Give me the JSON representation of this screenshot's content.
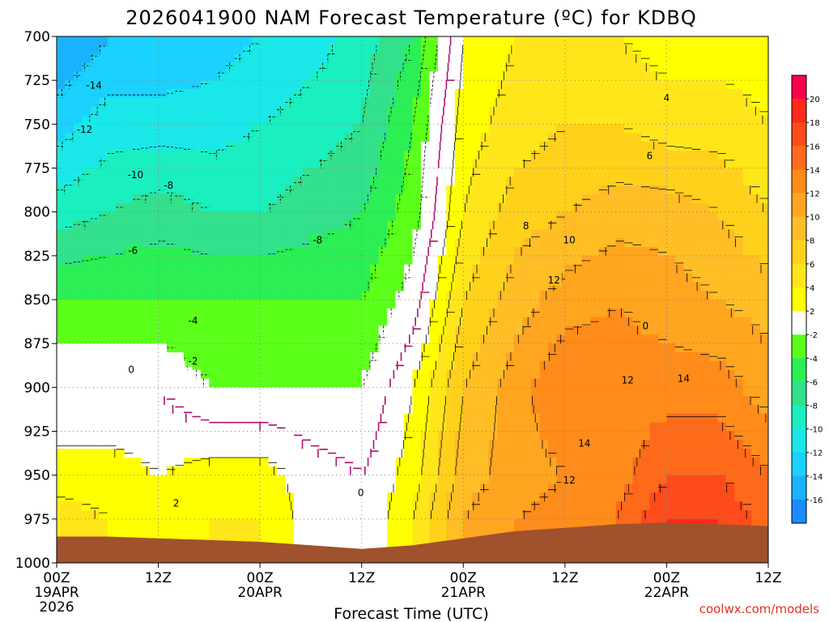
{
  "title": "2026041900 NAM Forecast Temperature (ºC) for KDBQ",
  "credit": "coolwx.com/models",
  "chart_data": {
    "type": "heatmap",
    "title": "2026041900 NAM Forecast Temperature (ºC) for KDBQ",
    "xlabel": "Forecast Time (UTC)",
    "ylabel": "",
    "xlim": [
      0,
      84
    ],
    "ylim": [
      1000,
      700
    ],
    "y_axis": {
      "ticks": [
        700,
        725,
        750,
        775,
        800,
        825,
        850,
        875,
        900,
        925,
        950,
        975,
        1000
      ],
      "labels": [
        "700",
        "725",
        "750",
        "775",
        "800",
        "825",
        "850",
        "875",
        "900",
        "925",
        "950",
        "975",
        "1000"
      ]
    },
    "x_axis": {
      "ticks": [
        0,
        12,
        24,
        36,
        48,
        60,
        72,
        84
      ],
      "labels": [
        [
          "00Z",
          "19APR",
          "2026"
        ],
        [
          "12Z"
        ],
        [
          "00Z",
          "20APR"
        ],
        [
          "12Z"
        ],
        [
          "00Z",
          "21APR"
        ],
        [
          "12Z"
        ],
        [
          "00Z",
          "22APR"
        ],
        [
          "12Z"
        ]
      ]
    },
    "grid": true,
    "colorbar": {
      "levels": [
        20,
        18,
        16,
        14,
        12,
        10,
        8,
        6,
        4,
        2,
        -2,
        -4,
        -6,
        -8,
        -10,
        -12,
        -14,
        -16
      ],
      "colors": [
        "#ff004a",
        "#ff2a1a",
        "#ff4a1a",
        "#ff6a1a",
        "#ff8c1a",
        "#ffa51f",
        "#ffbd26",
        "#ffd11a",
        "#ffe61a",
        "#ffff00",
        "#ffffff",
        "#5cff1a",
        "#2bef55",
        "#33e08c",
        "#1aefbf",
        "#1ae8e8",
        "#1ad1ff",
        "#1ab2ff",
        "#1a8cff"
      ],
      "labels": [
        "20",
        "18",
        "16",
        "14",
        "12",
        "10",
        "8",
        "6",
        "4",
        "2",
        "-2",
        "-4",
        "-6",
        "-8",
        "-10",
        "-12",
        "-14",
        "-16"
      ]
    },
    "contour_labels": [
      {
        "text": "-14",
        "x": 4.4,
        "y": 728
      },
      {
        "text": "-12",
        "x": 3.3,
        "y": 753
      },
      {
        "text": "-10",
        "x": 9.3,
        "y": 779
      },
      {
        "text": "-8",
        "x": 13.2,
        "y": 785
      },
      {
        "text": "-8",
        "x": 30.8,
        "y": 816
      },
      {
        "text": "-6",
        "x": 9.0,
        "y": 822
      },
      {
        "text": "-4",
        "x": 16.1,
        "y": 862
      },
      {
        "text": "-2",
        "x": 16.1,
        "y": 885
      },
      {
        "text": "0",
        "x": 8.8,
        "y": 890
      },
      {
        "text": "2",
        "x": 14.1,
        "y": 966
      },
      {
        "text": "0",
        "x": 35.9,
        "y": 960
      },
      {
        "text": "8",
        "x": 55.4,
        "y": 808
      },
      {
        "text": "10",
        "x": 60.5,
        "y": 816
      },
      {
        "text": "12",
        "x": 58.7,
        "y": 839
      },
      {
        "text": "0",
        "x": 69.5,
        "y": 865
      },
      {
        "text": "4",
        "x": 72.0,
        "y": 735
      },
      {
        "text": "6",
        "x": 70.0,
        "y": 768
      },
      {
        "text": "12",
        "x": 67.4,
        "y": 896
      },
      {
        "text": "14",
        "x": 74.0,
        "y": 895
      },
      {
        "text": "14",
        "x": 62.3,
        "y": 932
      },
      {
        "text": "12",
        "x": 60.5,
        "y": 953
      }
    ],
    "temperature_field": {
      "description": "Temperature (ºC) vs forecast hour (x) and pressure level (y)",
      "hours": [
        0,
        6,
        12,
        18,
        24,
        30,
        36,
        42,
        48,
        54,
        60,
        66,
        72,
        78,
        84
      ],
      "levels": [
        700,
        750,
        800,
        850,
        900,
        950,
        975
      ],
      "rows": [
        [
          -16,
          -14,
          -14,
          -13,
          -12,
          -11,
          -9,
          -6,
          2,
          4,
          4,
          4,
          3,
          3,
          3
        ],
        [
          -13,
          -11,
          -11,
          -11,
          -10,
          -9,
          -8,
          -4,
          3,
          5,
          6,
          6,
          5,
          5,
          4
        ],
        [
          -9,
          -8,
          -7,
          -8,
          -8,
          -7,
          -6,
          -3,
          4,
          7,
          8,
          9,
          9,
          8,
          6
        ],
        [
          -4,
          -4,
          -4,
          -4,
          -4,
          -4,
          -4,
          -1,
          6,
          9,
          11,
          12,
          11,
          10,
          9
        ],
        [
          0,
          0,
          0,
          -2,
          -2,
          -2,
          -2,
          2,
          8,
          11,
          14,
          13,
          13,
          13,
          11
        ],
        [
          3,
          3,
          2,
          3,
          3,
          1,
          0,
          3,
          9,
          11,
          12,
          13,
          16,
          16,
          14
        ],
        [
          5,
          4,
          2,
          4,
          4,
          1,
          0,
          4,
          10,
          12,
          13,
          14,
          18,
          18,
          15
        ]
      ]
    },
    "surface_pressure_hpa": [
      985,
      985,
      986,
      987,
      988,
      990,
      992,
      990,
      986,
      982,
      980,
      978,
      977,
      978,
      979
    ]
  }
}
